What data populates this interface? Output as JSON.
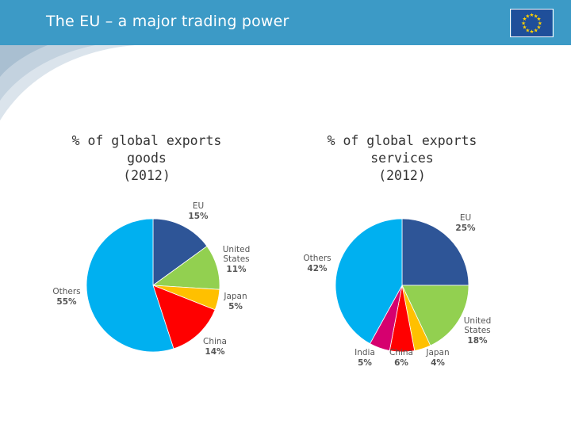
{
  "header": {
    "title": "The EU – a major trading power",
    "accent": "#3c9ac6"
  },
  "flag": {
    "icon": "eu-flag-icon",
    "background": "#1f4f9a",
    "star_color": "#ffd200"
  },
  "chart_data": [
    {
      "type": "pie",
      "title_lines": [
        "% of global exports",
        "goods",
        "(2012)"
      ],
      "slices": [
        {
          "label_lines": [
            "EU"
          ],
          "value": 15,
          "value_label": "15%",
          "color": "#2e5597"
        },
        {
          "label_lines": [
            "United",
            "States"
          ],
          "value": 11,
          "value_label": "11%",
          "color": "#92d050"
        },
        {
          "label_lines": [
            "Japan"
          ],
          "value": 5,
          "value_label": "5%",
          "color": "#ffc000"
        },
        {
          "label_lines": [
            "China"
          ],
          "value": 14,
          "value_label": "14%",
          "color": "#ff0000"
        },
        {
          "label_lines": [
            "Others"
          ],
          "value": 55,
          "value_label": "55%",
          "color": "#00b0f0"
        }
      ]
    },
    {
      "type": "pie",
      "title_lines": [
        "% of global exports",
        "services",
        "(2012)"
      ],
      "slices": [
        {
          "label_lines": [
            "EU"
          ],
          "value": 25,
          "value_label": "25%",
          "color": "#2e5597"
        },
        {
          "label_lines": [
            "United",
            "States"
          ],
          "value": 18,
          "value_label": "18%",
          "color": "#92d050"
        },
        {
          "label_lines": [
            "Japan"
          ],
          "value": 4,
          "value_label": "4%",
          "color": "#ffc000"
        },
        {
          "label_lines": [
            "China"
          ],
          "value": 6,
          "value_label": "6%",
          "color": "#ff0000"
        },
        {
          "label_lines": [
            "India"
          ],
          "value": 5,
          "value_label": "5%",
          "color": "#d6006f"
        },
        {
          "label_lines": [
            "Others"
          ],
          "value": 42,
          "value_label": "42%",
          "color": "#00b0f0"
        }
      ]
    }
  ]
}
